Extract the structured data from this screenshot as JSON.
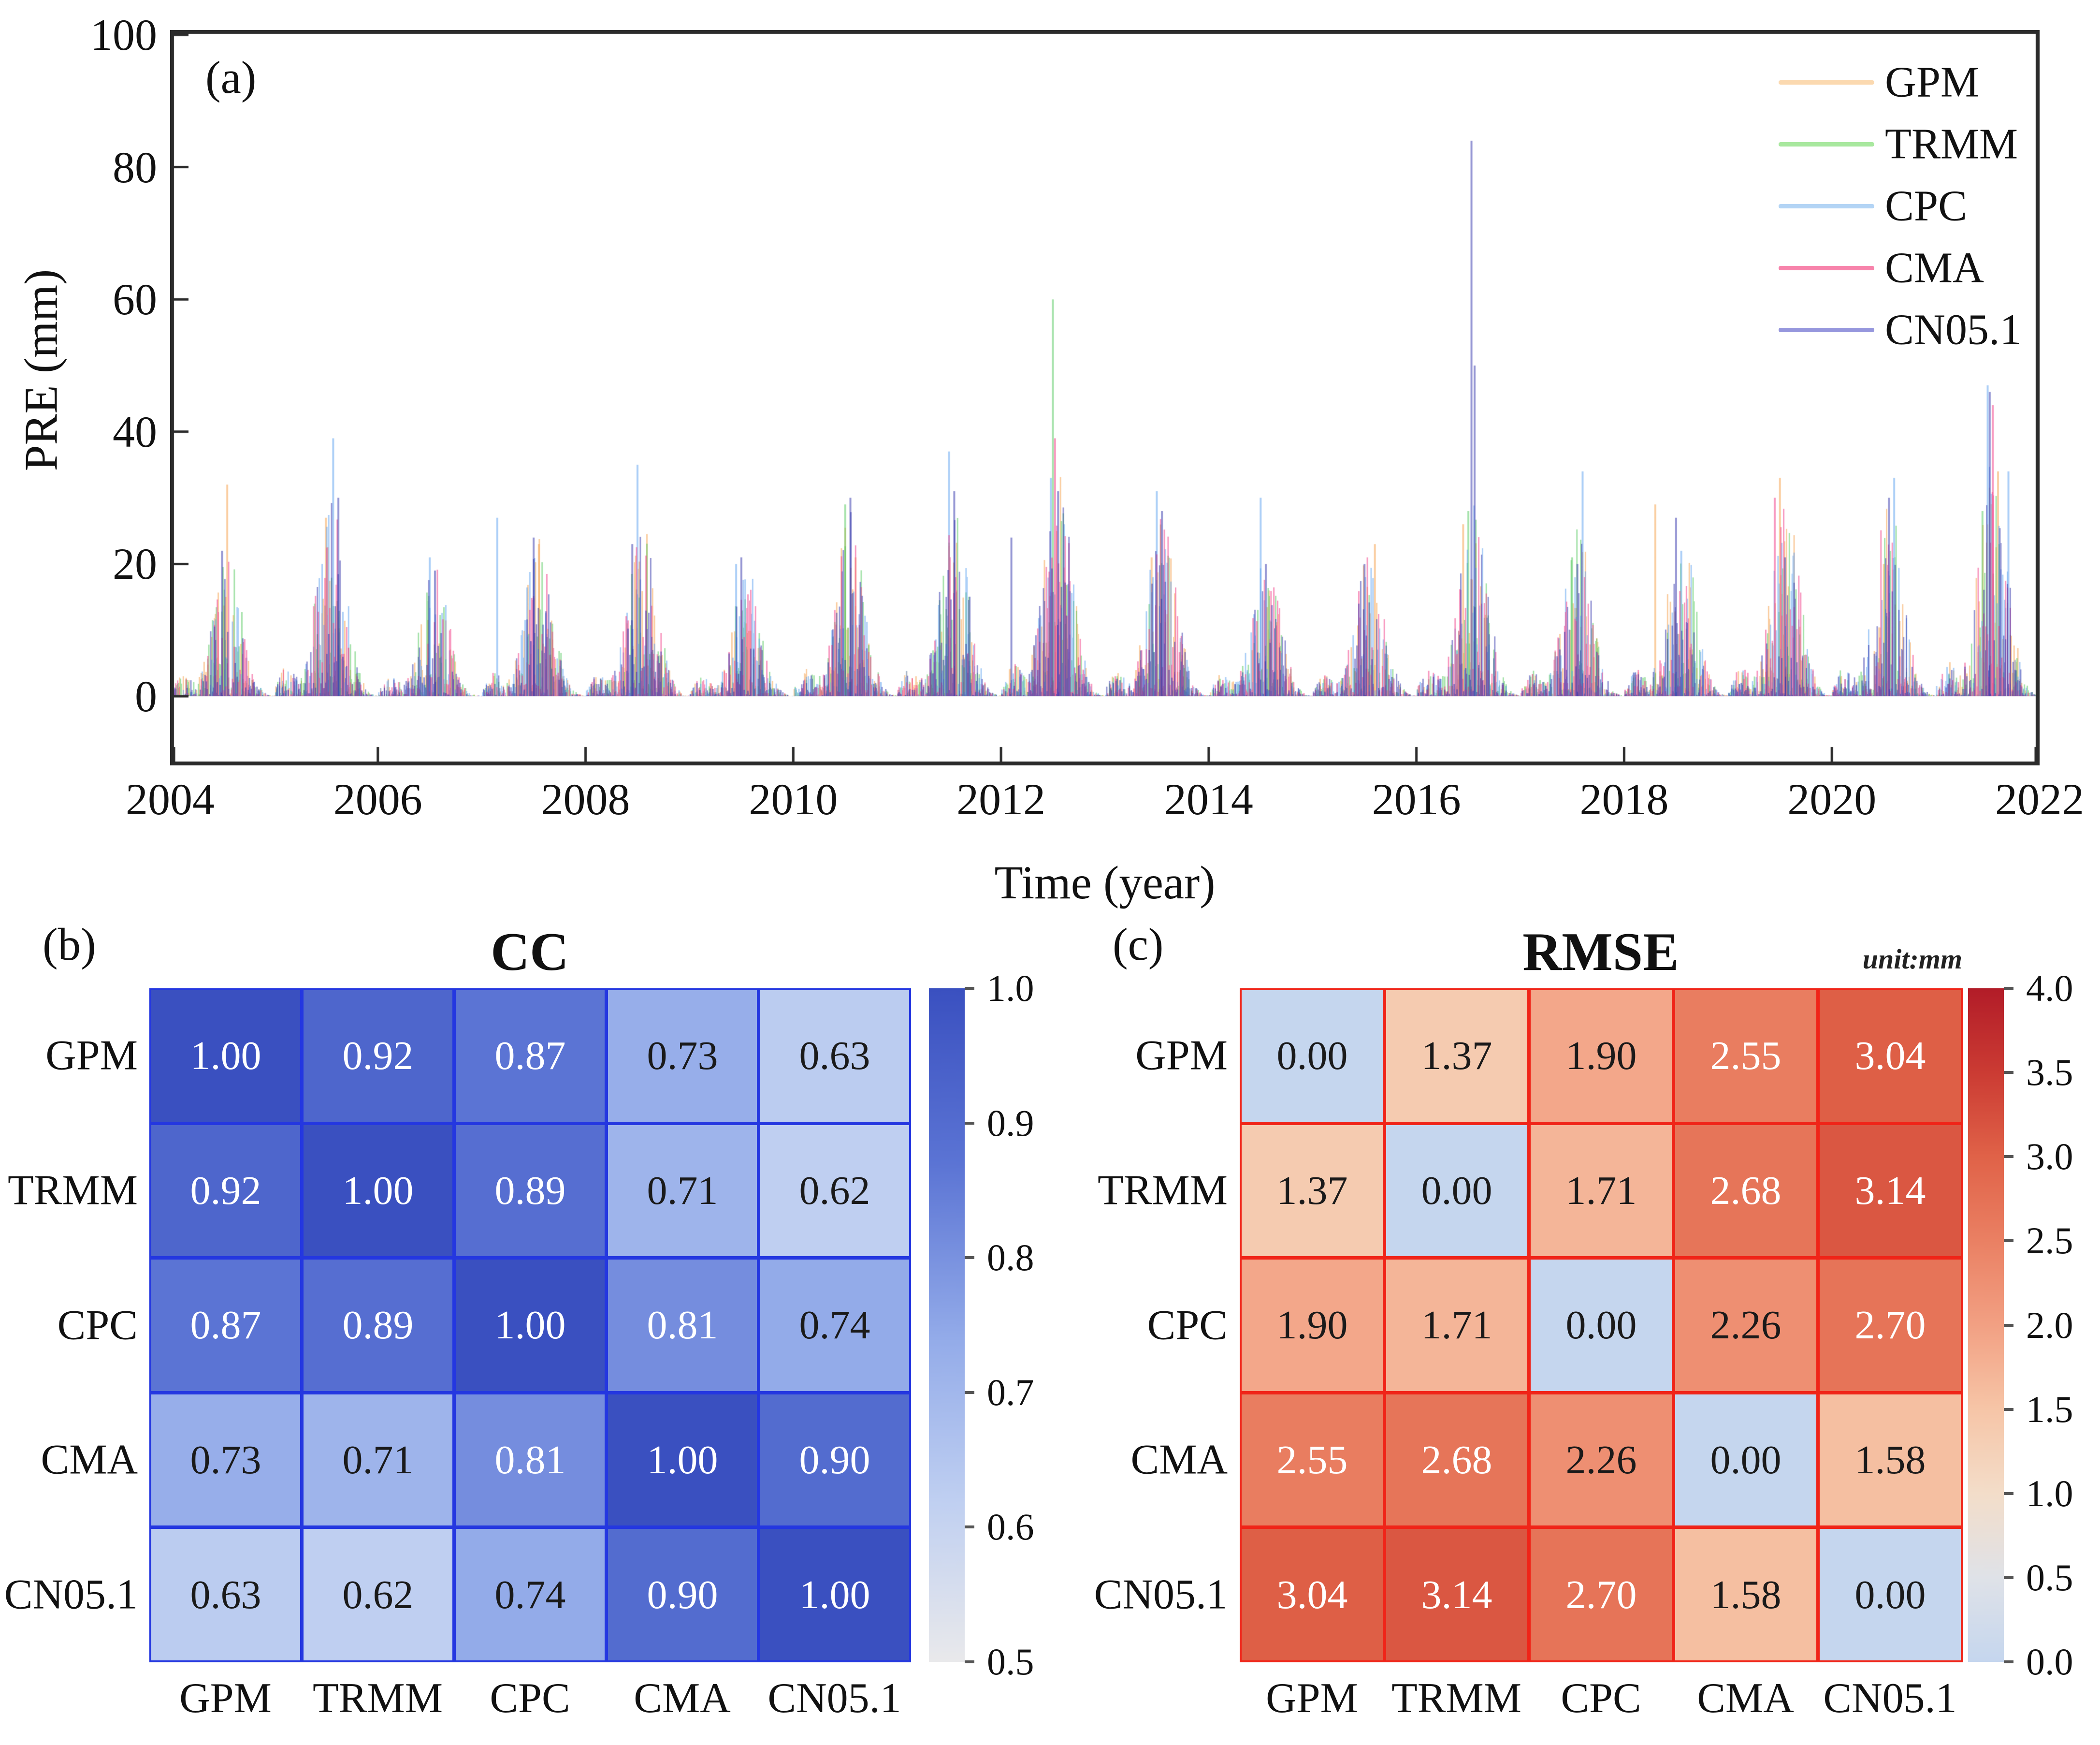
{
  "figure_background": "#ffffff",
  "chart_data": [
    {
      "id": "a",
      "type": "line",
      "panel_label": "(a)",
      "xlabel": "Time (year)",
      "ylabel": "PRE (mm)",
      "xlim": [
        2004,
        2022
      ],
      "ylim": [
        0,
        100
      ],
      "xticks": [
        2004,
        2006,
        2008,
        2010,
        2012,
        2014,
        2016,
        2018,
        2020,
        2022
      ],
      "yticks": [
        0,
        20,
        40,
        60,
        80,
        100
      ],
      "grid": false,
      "legend_position": "top-right-inside",
      "axis_color": "#2b2b2b",
      "series": [
        {
          "name": "GPM",
          "legend_color": "#fbd9b0",
          "stroke_color": "rgba(246,166,86,0.55)"
        },
        {
          "name": "TRMM",
          "legend_color": "#a8e89e",
          "stroke_color": "rgba(80,200,90,0.50)"
        },
        {
          "name": "CPC",
          "legend_color": "#b3d4f5",
          "stroke_color": "rgba(90,160,240,0.50)"
        },
        {
          "name": "CMA",
          "legend_color": "#f783ab",
          "stroke_color": "rgba(242,70,140,0.55)"
        },
        {
          "name": "CN05.1",
          "legend_color": "#9697dd",
          "stroke_color": "rgba(46,48,170,0.50)"
        }
      ],
      "annual_peak_mm": {
        "2004": 22,
        "2005": 30,
        "2006": 20,
        "2007": 24,
        "2008": 26,
        "2009": 20,
        "2010": 28,
        "2011": 28,
        "2012": 34,
        "2013": 28,
        "2014": 22,
        "2015": 22,
        "2016": 30,
        "2017": 26,
        "2018": 26,
        "2019": 30,
        "2020": 30,
        "2021": 36
      },
      "notable_spikes": [
        {
          "x": 2004.55,
          "series": "GPM",
          "y": 32
        },
        {
          "x": 2004.5,
          "series": "CN05.1",
          "y": 22
        },
        {
          "x": 2005.57,
          "series": "CPC",
          "y": 39
        },
        {
          "x": 2005.5,
          "series": "GPM",
          "y": 27
        },
        {
          "x": 2005.62,
          "series": "CN05.1",
          "y": 30
        },
        {
          "x": 2006.5,
          "series": "CPC",
          "y": 21
        },
        {
          "x": 2006.55,
          "series": "CN05.1",
          "y": 19
        },
        {
          "x": 2007.15,
          "series": "CPC",
          "y": 27
        },
        {
          "x": 2007.5,
          "series": "CN05.1",
          "y": 24
        },
        {
          "x": 2007.55,
          "series": "GPM",
          "y": 23
        },
        {
          "x": 2008.5,
          "series": "CPC",
          "y": 35
        },
        {
          "x": 2008.45,
          "series": "CN05.1",
          "y": 23
        },
        {
          "x": 2009.45,
          "series": "CPC",
          "y": 20
        },
        {
          "x": 2009.5,
          "series": "CN05.1",
          "y": 21
        },
        {
          "x": 2010.5,
          "series": "TRMM",
          "y": 29
        },
        {
          "x": 2010.55,
          "series": "CN05.1",
          "y": 30
        },
        {
          "x": 2010.6,
          "series": "GPM",
          "y": 21
        },
        {
          "x": 2011.5,
          "series": "CPC",
          "y": 37
        },
        {
          "x": 2011.55,
          "series": "CN05.1",
          "y": 31
        },
        {
          "x": 2012.1,
          "series": "CN05.1",
          "y": 24
        },
        {
          "x": 2012.48,
          "series": "CPC",
          "y": 33
        },
        {
          "x": 2012.5,
          "series": "TRMM",
          "y": 60
        },
        {
          "x": 2012.52,
          "series": "CMA",
          "y": 39
        },
        {
          "x": 2012.55,
          "series": "CN05.1",
          "y": 31
        },
        {
          "x": 2013.45,
          "series": "GPM",
          "y": 21
        },
        {
          "x": 2013.5,
          "series": "CPC",
          "y": 31
        },
        {
          "x": 2013.55,
          "series": "CN05.1",
          "y": 28
        },
        {
          "x": 2014.5,
          "series": "CPC",
          "y": 30
        },
        {
          "x": 2014.55,
          "series": "CN05.1",
          "y": 20
        },
        {
          "x": 2015.6,
          "series": "GPM",
          "y": 23
        },
        {
          "x": 2015.5,
          "series": "CN05.1",
          "y": 20
        },
        {
          "x": 2016.45,
          "series": "GPM",
          "y": 26
        },
        {
          "x": 2016.5,
          "series": "TRMM",
          "y": 28
        },
        {
          "x": 2016.53,
          "series": "CN05.1",
          "y": 84
        },
        {
          "x": 2016.56,
          "series": "CN05.1",
          "y": 50
        },
        {
          "x": 2017.6,
          "series": "CPC",
          "y": 34
        },
        {
          "x": 2017.5,
          "series": "TRMM",
          "y": 21
        },
        {
          "x": 2017.55,
          "series": "CN05.1",
          "y": 20
        },
        {
          "x": 2018.3,
          "series": "GPM",
          "y": 29
        },
        {
          "x": 2018.5,
          "series": "CN05.1",
          "y": 27
        },
        {
          "x": 2018.55,
          "series": "CPC",
          "y": 22
        },
        {
          "x": 2019.45,
          "series": "CMA",
          "y": 30
        },
        {
          "x": 2019.5,
          "series": "GPM",
          "y": 33
        },
        {
          "x": 2019.55,
          "series": "CN05.1",
          "y": 21
        },
        {
          "x": 2020.5,
          "series": "GPM",
          "y": 20
        },
        {
          "x": 2020.55,
          "series": "CN05.1",
          "y": 30
        },
        {
          "x": 2020.6,
          "series": "CPC",
          "y": 33
        },
        {
          "x": 2021.45,
          "series": "TRMM",
          "y": 28
        },
        {
          "x": 2021.5,
          "series": "CPC",
          "y": 47
        },
        {
          "x": 2021.52,
          "series": "CN05.1",
          "y": 46
        },
        {
          "x": 2021.55,
          "series": "CMA",
          "y": 44
        },
        {
          "x": 2021.6,
          "series": "GPM",
          "y": 34
        },
        {
          "x": 2021.7,
          "series": "CPC",
          "y": 34
        }
      ]
    },
    {
      "id": "b",
      "type": "heatmap",
      "panel_label": "(b)",
      "title": "CC",
      "row_labels": [
        "GPM",
        "TRMM",
        "CPC",
        "CMA",
        "CN05.1"
      ],
      "col_labels": [
        "GPM",
        "TRMM",
        "CPC",
        "CMA",
        "CN05.1"
      ],
      "values": [
        [
          1.0,
          0.92,
          0.87,
          0.73,
          0.63
        ],
        [
          0.92,
          1.0,
          0.89,
          0.71,
          0.62
        ],
        [
          0.87,
          0.89,
          1.0,
          0.81,
          0.74
        ],
        [
          0.73,
          0.71,
          0.81,
          1.0,
          0.9
        ],
        [
          0.63,
          0.62,
          0.74,
          0.9,
          1.0
        ]
      ],
      "value_range": [
        0.5,
        1.0
      ],
      "colorbar_ticks": [
        1.0,
        0.9,
        0.8,
        0.7,
        0.6,
        0.5
      ],
      "grid_color": "#2437e0",
      "white_text_min": 0.8,
      "text_color_dark": "#1a1a1a",
      "text_color_light": "#ffffff",
      "colormap": [
        {
          "v": 0.5,
          "c": "#e9e9eb"
        },
        {
          "v": 0.62,
          "c": "#bfcff1"
        },
        {
          "v": 0.74,
          "c": "#93abe9"
        },
        {
          "v": 0.87,
          "c": "#5b74d4"
        },
        {
          "v": 1.0,
          "c": "#3a50c0"
        }
      ]
    },
    {
      "id": "c",
      "type": "heatmap",
      "panel_label": "(c)",
      "title": "RMSE",
      "unit_note": "unit:mm",
      "row_labels": [
        "GPM",
        "TRMM",
        "CPC",
        "CMA",
        "CN05.1"
      ],
      "col_labels": [
        "GPM",
        "TRMM",
        "CPC",
        "CMA",
        "CN05.1"
      ],
      "values": [
        [
          0.0,
          1.37,
          1.9,
          2.55,
          3.04
        ],
        [
          1.37,
          0.0,
          1.71,
          2.68,
          3.14
        ],
        [
          1.9,
          1.71,
          0.0,
          2.26,
          2.7
        ],
        [
          2.55,
          2.68,
          2.26,
          0.0,
          1.58
        ],
        [
          3.04,
          3.14,
          2.7,
          1.58,
          0.0
        ]
      ],
      "value_range": [
        0.0,
        4.0
      ],
      "colorbar_ticks": [
        4.0,
        3.5,
        3.0,
        2.5,
        2.0,
        1.5,
        1.0,
        0.5,
        0.0
      ],
      "grid_color": "#f02418",
      "white_text_min": 2.5,
      "text_color_dark": "#1a1a1a",
      "text_color_light": "#ffffff",
      "colormap": [
        {
          "v": 0.0,
          "c": "#c5d6ee"
        },
        {
          "v": 0.5,
          "c": "#dfe2e8"
        },
        {
          "v": 1.0,
          "c": "#f3ddc9"
        },
        {
          "v": 1.5,
          "c": "#f6c5a7"
        },
        {
          "v": 2.0,
          "c": "#f2a083"
        },
        {
          "v": 2.5,
          "c": "#ea8063"
        },
        {
          "v": 3.0,
          "c": "#e06248"
        },
        {
          "v": 3.5,
          "c": "#cb3b33"
        },
        {
          "v": 4.0,
          "c": "#b21c28"
        }
      ]
    }
  ]
}
